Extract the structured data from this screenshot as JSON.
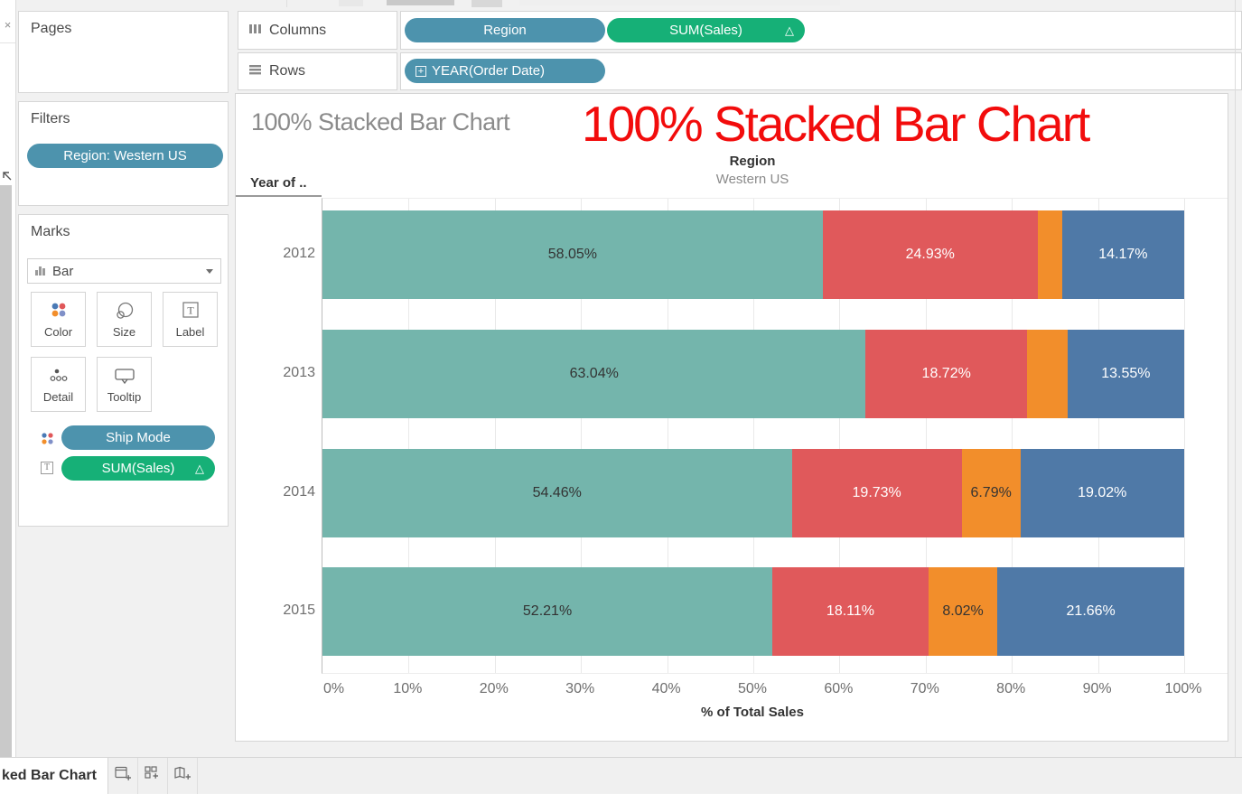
{
  "colors": {
    "pill_blue": "#4d93ad",
    "pill_green": "#16b077",
    "annotation_red": "#f20c0c"
  },
  "left_rail": {
    "close_icon": "×"
  },
  "shelves": {
    "columns": {
      "label": "Columns",
      "pills": [
        {
          "label": "Region"
        },
        {
          "label": "SUM(Sales)",
          "badge": "△"
        }
      ]
    },
    "rows": {
      "label": "Rows",
      "pills": [
        {
          "label": "YEAR(Order Date)",
          "prefix": "+"
        }
      ]
    }
  },
  "cards": {
    "pages": {
      "title": "Pages"
    },
    "filters": {
      "title": "Filters",
      "pill": "Region: Western US"
    },
    "marks": {
      "title": "Marks",
      "mark_type": "Bar",
      "buttons": {
        "color": "Color",
        "size": "Size",
        "label": "Label",
        "detail": "Detail",
        "tooltip": "Tooltip"
      },
      "pills": [
        {
          "label": "Ship Mode"
        },
        {
          "label": "SUM(Sales)",
          "badge": "△"
        }
      ]
    }
  },
  "sheet": {
    "title": "100% Stacked Bar Chart",
    "annotation": "100% Stacked Bar Chart",
    "column_header": {
      "field": "Region",
      "value": "Western US"
    },
    "row_header": "Year of ..",
    "axis_title": "% of Total Sales"
  },
  "status_bar": {
    "active_tab": "ked Bar Chart"
  },
  "chart_data": {
    "type": "bar",
    "orientation": "horizontal",
    "stacked": true,
    "normalized_100": true,
    "title": "100% Stacked Bar Chart",
    "categories": [
      "2012",
      "2013",
      "2014",
      "2015"
    ],
    "series": [
      {
        "name": "teal-segment",
        "color": "#74b5ac",
        "label_color": "#333333",
        "values": [
          58.05,
          63.04,
          54.46,
          52.21
        ],
        "labels": [
          "58.05%",
          "63.04%",
          "54.46%",
          "52.21%"
        ]
      },
      {
        "name": "red-segment",
        "color": "#e0595b",
        "label_color": "#ffffff",
        "values": [
          24.93,
          18.72,
          19.73,
          18.11
        ],
        "labels": [
          "24.93%",
          "18.72%",
          "19.73%",
          "18.11%"
        ]
      },
      {
        "name": "orange-segment",
        "color": "#f28e2b",
        "label_color": "#333333",
        "values": [
          2.85,
          4.69,
          6.79,
          8.02
        ],
        "labels": [
          "",
          "",
          "6.79%",
          "8.02%"
        ]
      },
      {
        "name": "blue-segment",
        "color": "#4f79a7",
        "label_color": "#ffffff",
        "values": [
          14.17,
          13.55,
          19.02,
          21.66
        ],
        "labels": [
          "14.17%",
          "13.55%",
          "19.02%",
          "21.66%"
        ]
      }
    ],
    "xlabel": "% of Total Sales",
    "x_ticks": [
      "0%",
      "10%",
      "20%",
      "30%",
      "40%",
      "50%",
      "60%",
      "70%",
      "80%",
      "90%",
      "100%"
    ],
    "xlim": [
      0,
      100
    ],
    "grid": true,
    "col_header": {
      "field": "Region",
      "value": "Western US"
    },
    "row_axis_label": "Year of .."
  }
}
